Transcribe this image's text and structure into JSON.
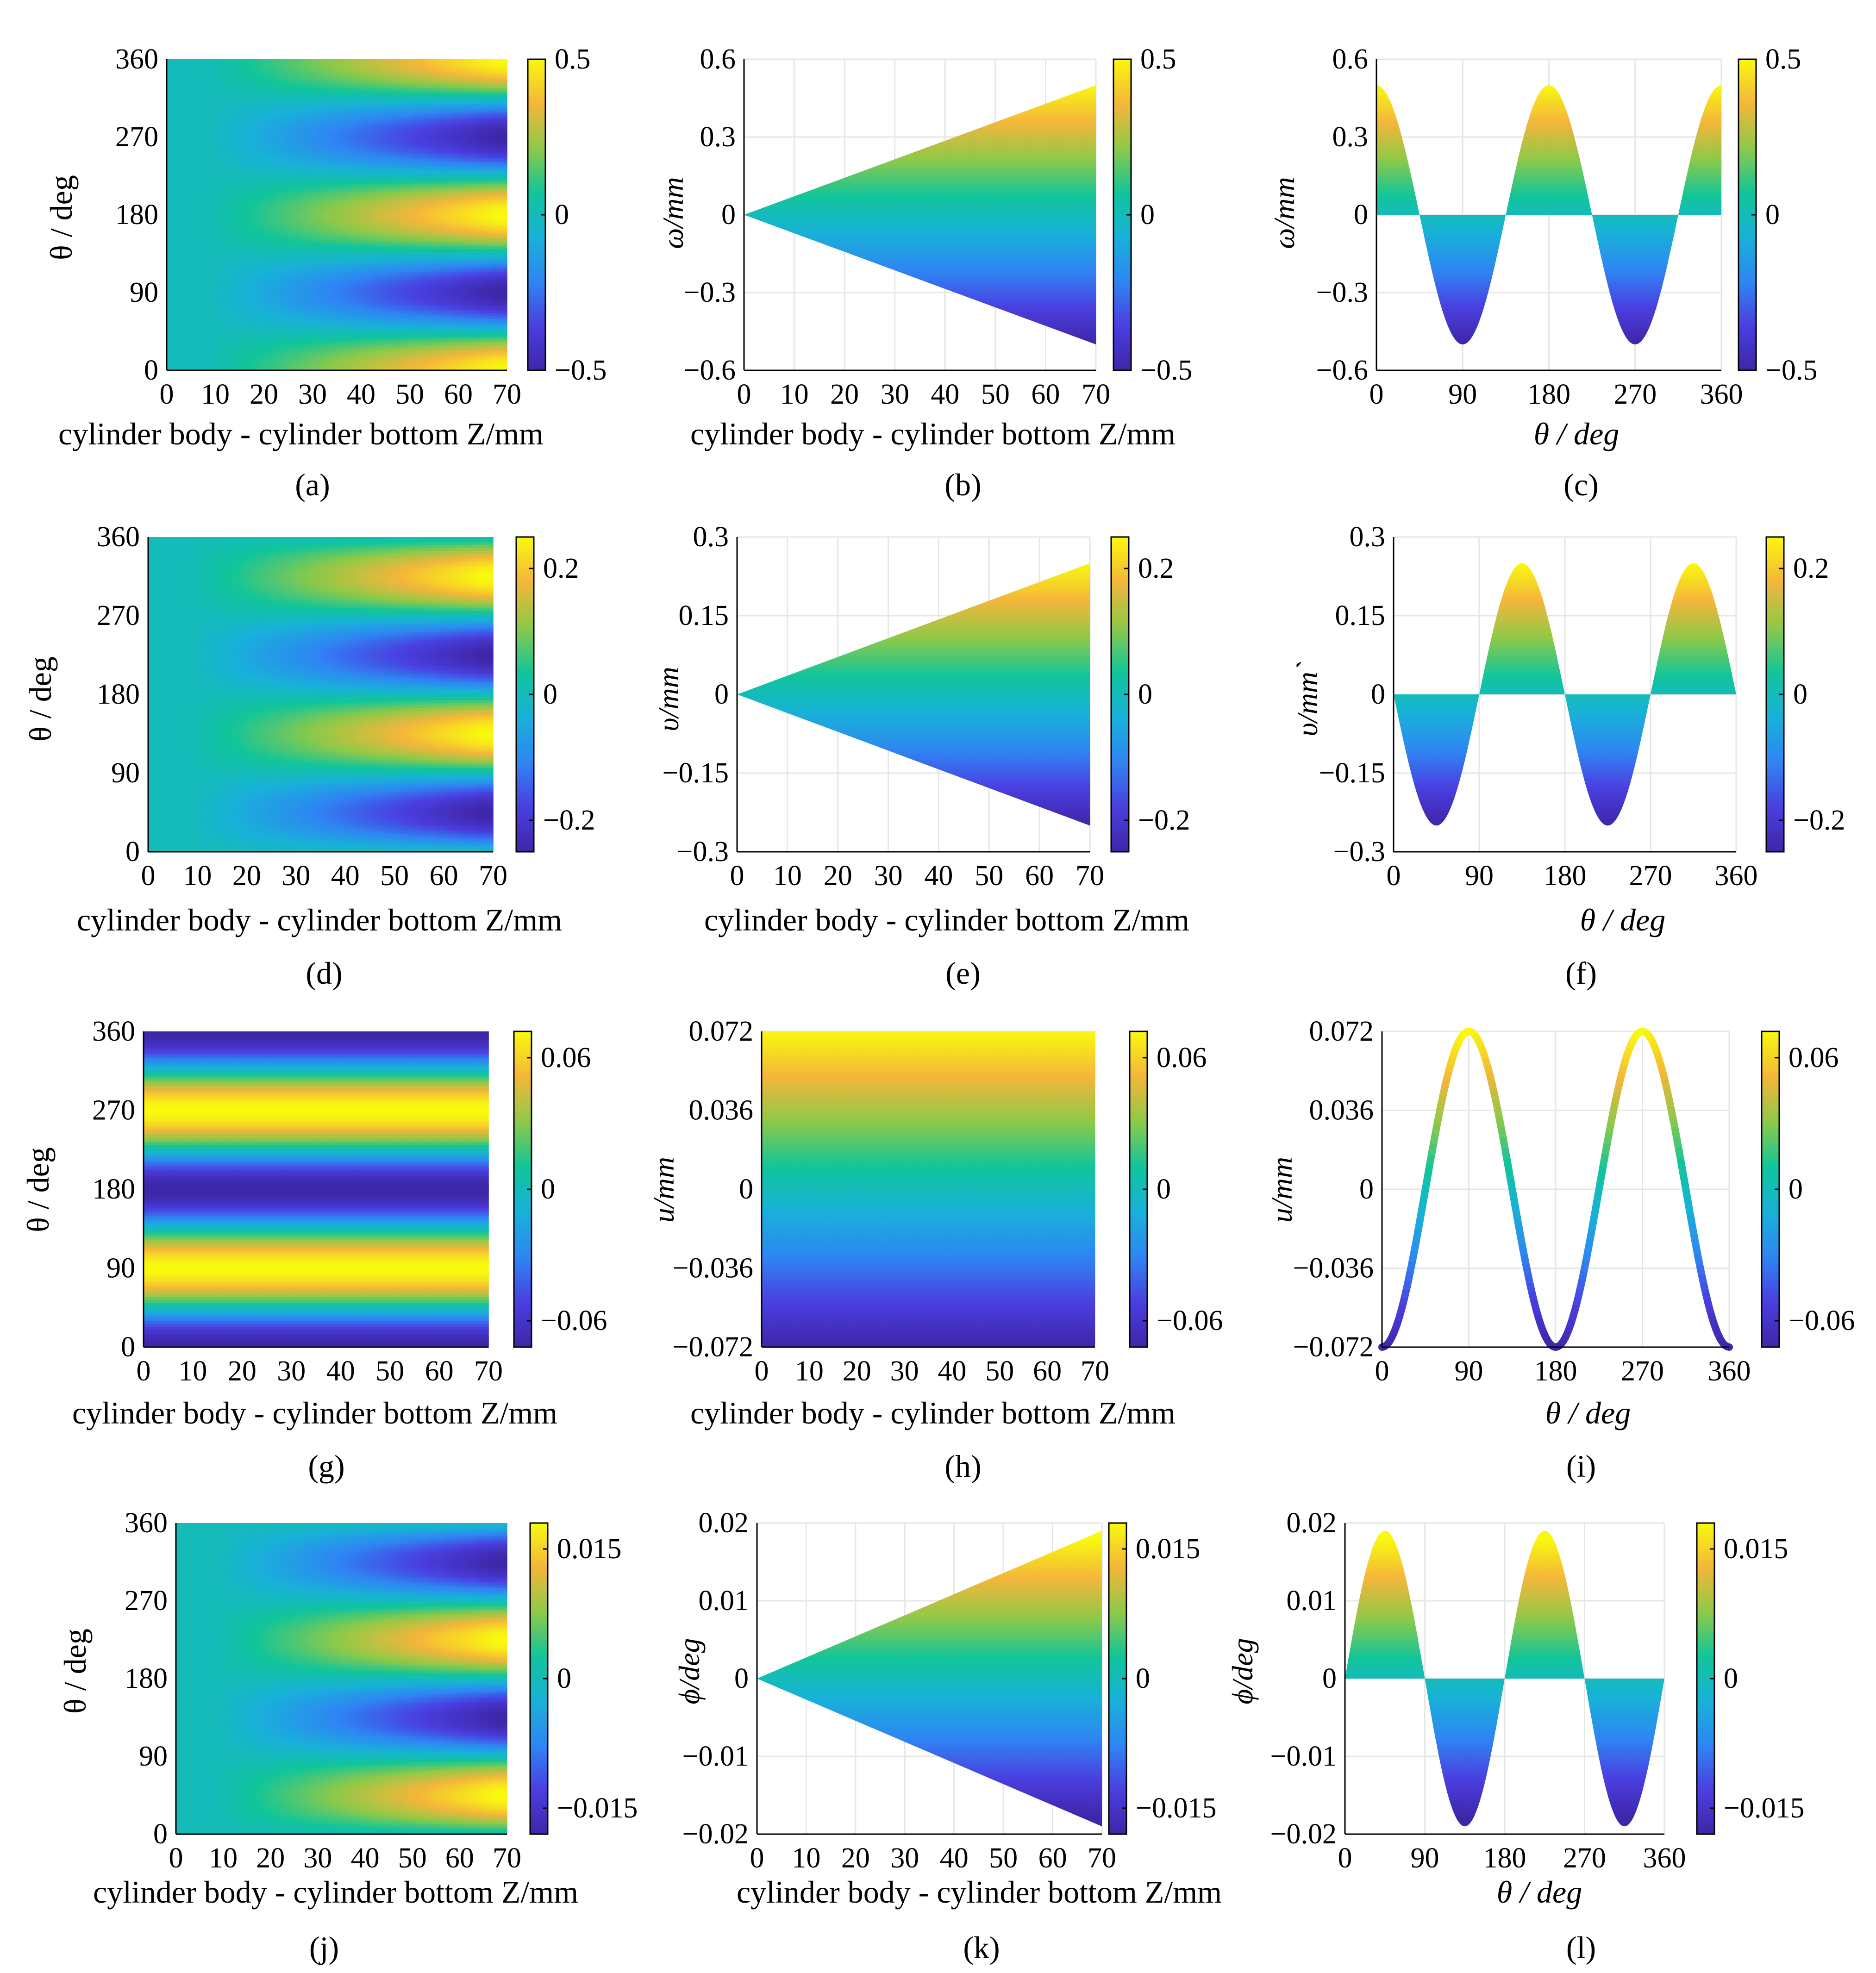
{
  "colormap": [
    "#3e26a8",
    "#4a3fe0",
    "#2e86f3",
    "#18b1d8",
    "#11c59a",
    "#8ec948",
    "#f4b63a",
    "#f9f90e"
  ],
  "panel_labels": {
    "a": "(a)",
    "b": "(b)",
    "c": "(c)",
    "d": "(d)",
    "e": "(e)",
    "f": "(f)",
    "g": "(g)",
    "h": "(h)",
    "i": "(i)",
    "j": "(j)",
    "k": "(k)",
    "l": "(l)"
  },
  "chart_data": [
    {
      "id": "a",
      "type": "heatmap",
      "xlabel": "cylinder body - cylinder bottom Z/mm",
      "ylabel": "θ / deg",
      "xlim": [
        0,
        70
      ],
      "ylim": [
        0,
        360
      ],
      "xticks": [
        "0",
        "10",
        "20",
        "30",
        "40",
        "50",
        "60",
        "70"
      ],
      "yticks": [
        "0",
        "90",
        "180",
        "270",
        "360"
      ],
      "clim": [
        -0.5,
        0.5
      ],
      "cticks": [
        "−0.5",
        "0",
        "0.5"
      ],
      "field": "w_map"
    },
    {
      "id": "b",
      "type": "area",
      "xlabel": "cylinder body - cylinder bottom Z/mm",
      "ylabel": "ω/mm",
      "xlim": [
        0,
        70
      ],
      "ylim": [
        -0.6,
        0.6
      ],
      "xticks": [
        "0",
        "10",
        "20",
        "30",
        "40",
        "50",
        "60",
        "70"
      ],
      "yticks": [
        "−0.6",
        "−0.3",
        "0",
        "0.3",
        "0.6"
      ],
      "clim": [
        -0.5,
        0.5
      ],
      "cticks": [
        "−0.5",
        "0",
        "0.5"
      ],
      "shape": "wedge",
      "x": [
        0,
        70
      ],
      "upper": [
        0,
        0.5
      ],
      "lower": [
        0,
        -0.5
      ]
    },
    {
      "id": "c",
      "type": "area",
      "xlabel": "θ / deg",
      "ylabel": "ω/mm",
      "xlim": [
        0,
        360
      ],
      "ylim": [
        -0.6,
        0.6
      ],
      "xticks": [
        "0",
        "90",
        "180",
        "270",
        "360"
      ],
      "yticks": [
        "−0.6",
        "−0.3",
        "0",
        "0.3",
        "0.6"
      ],
      "clim": [
        -0.5,
        0.5
      ],
      "cticks": [
        "−0.5",
        "0",
        "0.5"
      ],
      "shape": "wave",
      "amplitude": 0.5,
      "function": "cos(2θ)"
    },
    {
      "id": "d",
      "type": "heatmap",
      "xlabel": "cylinder body - cylinder bottom Z/mm",
      "ylabel": "θ / deg",
      "xlim": [
        0,
        70
      ],
      "ylim": [
        0,
        360
      ],
      "xticks": [
        "0",
        "10",
        "20",
        "30",
        "40",
        "50",
        "60",
        "70"
      ],
      "yticks": [
        "0",
        "90",
        "180",
        "270",
        "360"
      ],
      "clim": [
        -0.25,
        0.25
      ],
      "cticks": [
        "−0.2",
        "0",
        "0.2"
      ],
      "field": "v_map"
    },
    {
      "id": "e",
      "type": "area",
      "xlabel": "cylinder body - cylinder bottom Z/mm",
      "ylabel": "υ/mm",
      "xlim": [
        0,
        70
      ],
      "ylim": [
        -0.3,
        0.3
      ],
      "xticks": [
        "0",
        "10",
        "20",
        "30",
        "40",
        "50",
        "60",
        "70"
      ],
      "yticks": [
        "−0.3",
        "−0.15",
        "0",
        "0.15",
        "0.3"
      ],
      "clim": [
        -0.25,
        0.25
      ],
      "cticks": [
        "−0.2",
        "0",
        "0.2"
      ],
      "shape": "wedge",
      "x": [
        0,
        70
      ],
      "upper": [
        0,
        0.25
      ],
      "lower": [
        0,
        -0.25
      ]
    },
    {
      "id": "f",
      "type": "area",
      "xlabel": "θ / deg",
      "ylabel": "υ/mm`",
      "xlim": [
        0,
        360
      ],
      "ylim": [
        -0.3,
        0.3
      ],
      "xticks": [
        "0",
        "90",
        "180",
        "270",
        "360"
      ],
      "yticks": [
        "−0.3",
        "−0.15",
        "0",
        "0.15",
        "0.3"
      ],
      "clim": [
        -0.25,
        0.25
      ],
      "cticks": [
        "−0.2",
        "0",
        "0.2"
      ],
      "shape": "wave",
      "amplitude": 0.25,
      "function": "-sin(2θ)"
    },
    {
      "id": "g",
      "type": "heatmap",
      "xlabel": "cylinder body - cylinder bottom Z/mm",
      "ylabel": "θ / deg",
      "xlim": [
        0,
        70
      ],
      "ylim": [
        0,
        360
      ],
      "xticks": [
        "0",
        "10",
        "20",
        "30",
        "40",
        "50",
        "60",
        "70"
      ],
      "yticks": [
        "0",
        "90",
        "180",
        "270",
        "360"
      ],
      "clim": [
        -0.072,
        0.072
      ],
      "cticks": [
        "−0.06",
        "0",
        "0.06"
      ],
      "field": "u_map"
    },
    {
      "id": "h",
      "type": "area",
      "xlabel": "cylinder body - cylinder bottom Z/mm",
      "ylabel": "u/mm",
      "xlim": [
        0,
        70
      ],
      "ylim": [
        -0.072,
        0.072
      ],
      "xticks": [
        "0",
        "10",
        "20",
        "30",
        "40",
        "50",
        "60",
        "70"
      ],
      "yticks": [
        "−0.072",
        "−0.036",
        "0",
        "0.036",
        "0.072"
      ],
      "clim": [
        -0.072,
        0.072
      ],
      "cticks": [
        "−0.06",
        "0",
        "0.06"
      ],
      "shape": "band",
      "x": [
        0,
        70
      ],
      "upper": [
        0.072,
        0.072
      ],
      "lower": [
        -0.072,
        -0.072
      ]
    },
    {
      "id": "i",
      "type": "line",
      "xlabel": "θ / deg",
      "ylabel": "u/mm",
      "xlim": [
        0,
        360
      ],
      "ylim": [
        -0.072,
        0.072
      ],
      "xticks": [
        "0",
        "90",
        "180",
        "270",
        "360"
      ],
      "yticks": [
        "−0.072",
        "−0.036",
        "0",
        "0.036",
        "0.072"
      ],
      "clim": [
        -0.072,
        0.072
      ],
      "cticks": [
        "−0.06",
        "0",
        "0.06"
      ],
      "shape": "curve",
      "amplitude": 0.072,
      "function": "-cos(2θ)"
    },
    {
      "id": "j",
      "type": "heatmap",
      "xlabel": "cylinder body - cylinder bottom Z/mm",
      "ylabel": "θ / deg",
      "xlim": [
        0,
        70
      ],
      "ylim": [
        0,
        360
      ],
      "xticks": [
        "0",
        "10",
        "20",
        "30",
        "40",
        "50",
        "60",
        "70"
      ],
      "yticks": [
        "0",
        "90",
        "180",
        "270",
        "360"
      ],
      "clim": [
        -0.018,
        0.018
      ],
      "cticks": [
        "−0.015",
        "0",
        "0.015"
      ],
      "field": "phi_map"
    },
    {
      "id": "k",
      "type": "area",
      "xlabel": "cylinder body - cylinder bottom Z/mm",
      "ylabel": "ϕ/deg",
      "xlim": [
        0,
        70
      ],
      "ylim": [
        -0.02,
        0.02
      ],
      "xticks": [
        "0",
        "10",
        "20",
        "30",
        "40",
        "50",
        "60",
        "70"
      ],
      "yticks": [
        "−0.02",
        "−0.01",
        "0",
        "0.01",
        "0.02"
      ],
      "clim": [
        -0.018,
        0.018
      ],
      "cticks": [
        "−0.015",
        "0",
        "0.015"
      ],
      "shape": "wedge",
      "x": [
        0,
        70
      ],
      "upper": [
        0,
        0.019
      ],
      "lower": [
        0,
        -0.019
      ]
    },
    {
      "id": "l",
      "type": "area",
      "xlabel": "θ / deg",
      "ylabel": "ϕ/deg",
      "xlim": [
        0,
        360
      ],
      "ylim": [
        -0.02,
        0.02
      ],
      "xticks": [
        "0",
        "90",
        "180",
        "270",
        "360"
      ],
      "yticks": [
        "−0.02",
        "−0.01",
        "0",
        "0.01",
        "0.02"
      ],
      "clim": [
        -0.018,
        0.018
      ],
      "cticks": [
        "−0.015",
        "0",
        "0.015"
      ],
      "shape": "wave",
      "amplitude": 0.019,
      "function": "sin(2θ)"
    }
  ]
}
